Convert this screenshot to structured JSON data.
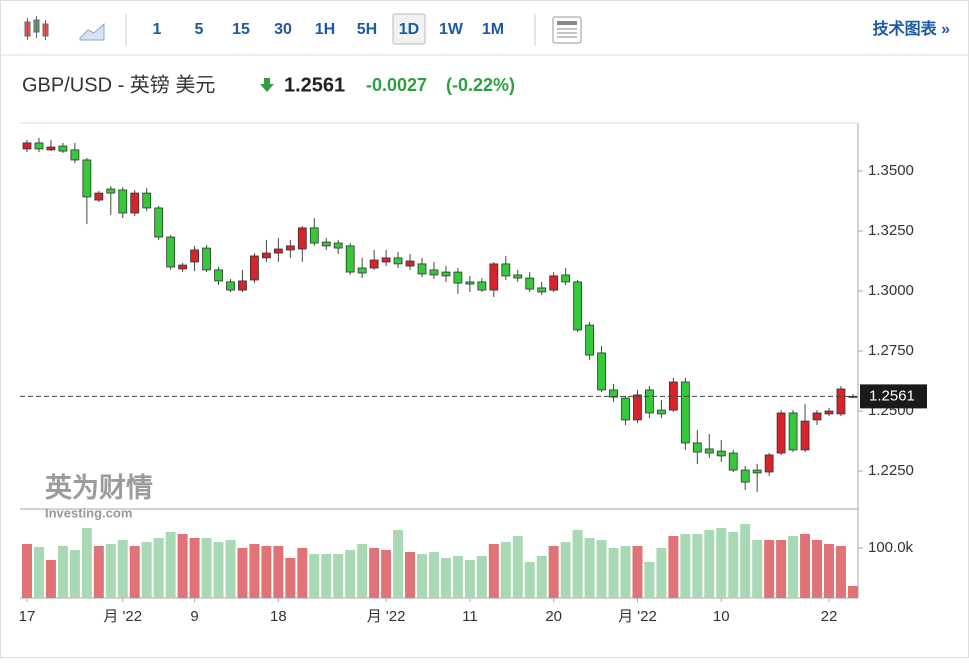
{
  "toolbar": {
    "intervals": [
      "1",
      "5",
      "15",
      "30",
      "1H",
      "5H",
      "1D",
      "1W",
      "1M"
    ],
    "active_index": 6,
    "link": "技术图表 »"
  },
  "quote": {
    "pair": "GBP/USD - 英镑 美元",
    "price": 1.2561,
    "change": -0.0027,
    "change_pct": "(-0.22%)"
  },
  "watermark": {
    "name": "英为财情",
    "site": "Investing.com"
  },
  "chart_data": {
    "type": "candlestick",
    "categories": [
      "17",
      null,
      null,
      null,
      null,
      null,
      null,
      null,
      "月 '22",
      null,
      null,
      null,
      null,
      null,
      "9",
      null,
      null,
      null,
      null,
      null,
      null,
      "18",
      null,
      null,
      null,
      null,
      null,
      null,
      null,
      null,
      "月 '22",
      null,
      null,
      null,
      null,
      null,
      null,
      "11",
      null,
      null,
      null,
      null,
      null,
      null,
      "20",
      null,
      null,
      null,
      null,
      null,
      null,
      "月 '22",
      null,
      null,
      null,
      null,
      null,
      null,
      "10",
      null,
      null,
      null,
      null,
      null,
      null,
      null,
      null,
      "22",
      null,
      null
    ],
    "candles": {
      "open": [
        1.3592,
        1.3617,
        1.3588,
        1.3604,
        1.3588,
        1.3546,
        1.3379,
        1.3425,
        1.3421,
        1.3325,
        1.3408,
        1.3346,
        1.3225,
        1.3092,
        1.3121,
        1.3179,
        1.3088,
        1.3038,
        1.3004,
        1.3046,
        1.3138,
        1.3158,
        1.3171,
        1.3175,
        1.3263,
        1.3204,
        1.32,
        1.3188,
        1.3096,
        1.3096,
        1.3121,
        1.3138,
        1.3104,
        1.3113,
        1.3088,
        1.3079,
        1.3079,
        1.3038,
        1.3038,
        1.3004,
        1.3113,
        1.3067,
        1.3054,
        1.3013,
        1.3004,
        1.3067,
        1.3038,
        1.2858,
        1.2742,
        1.2588,
        1.2554,
        1.2463,
        1.2588,
        1.2504,
        1.2504,
        1.2621,
        1.2367,
        1.2342,
        1.2333,
        1.2325,
        1.2254,
        1.2254,
        1.2246,
        1.2325,
        1.2492,
        1.2338,
        1.2463,
        1.2488,
        1.2488,
        1.2558
      ],
      "high": [
        1.3629,
        1.3638,
        1.3629,
        1.3617,
        1.3617,
        1.3554,
        1.3417,
        1.3438,
        1.3433,
        1.3421,
        1.3429,
        1.3354,
        1.3233,
        1.3117,
        1.3188,
        1.3192,
        1.31,
        1.305,
        1.3088,
        1.3158,
        1.3213,
        1.3221,
        1.3213,
        1.3271,
        1.3304,
        1.3221,
        1.3213,
        1.32,
        1.3138,
        1.3171,
        1.3171,
        1.3163,
        1.3154,
        1.3138,
        1.3121,
        1.3104,
        1.3096,
        1.3063,
        1.3054,
        1.3121,
        1.3146,
        1.3088,
        1.3079,
        1.3038,
        1.3079,
        1.3096,
        1.3046,
        1.2871,
        1.2771,
        1.2613,
        1.2563,
        1.2588,
        1.2604,
        1.2546,
        1.2638,
        1.2638,
        1.2421,
        1.2404,
        1.2379,
        1.2338,
        1.2271,
        1.2279,
        1.2325,
        1.2504,
        1.2504,
        1.2529,
        1.2504,
        1.2513,
        1.2604,
        1.2571
      ],
      "low": [
        1.3579,
        1.3579,
        1.3583,
        1.3575,
        1.3533,
        1.3279,
        1.3371,
        1.3317,
        1.3304,
        1.3312,
        1.3333,
        1.3213,
        1.3088,
        1.3079,
        1.3083,
        1.3079,
        1.3025,
        1.2996,
        1.2996,
        1.3033,
        1.3121,
        1.3121,
        1.3138,
        1.3121,
        1.3188,
        1.3171,
        1.3154,
        1.3067,
        1.3054,
        1.3088,
        1.3104,
        1.3096,
        1.3088,
        1.3058,
        1.305,
        1.3038,
        1.2988,
        1.2996,
        1.2996,
        1.2975,
        1.3046,
        1.3038,
        1.2996,
        1.2983,
        1.2996,
        1.3025,
        1.2829,
        1.2713,
        1.2579,
        1.2538,
        1.2442,
        1.245,
        1.2471,
        1.2471,
        1.2496,
        1.2338,
        1.2279,
        1.2304,
        1.2288,
        1.2246,
        1.2171,
        1.2163,
        1.2229,
        1.2317,
        1.2329,
        1.2329,
        1.2442,
        1.2479,
        1.2479,
        1.2554
      ],
      "close": [
        1.3617,
        1.3592,
        1.36,
        1.3583,
        1.3546,
        1.3392,
        1.3408,
        1.3408,
        1.3325,
        1.3408,
        1.3346,
        1.3225,
        1.31,
        1.3108,
        1.3171,
        1.3088,
        1.3042,
        1.3004,
        1.3042,
        1.3146,
        1.3158,
        1.3175,
        1.3188,
        1.3263,
        1.32,
        1.3188,
        1.3179,
        1.3079,
        1.3075,
        1.3129,
        1.3138,
        1.3113,
        1.3125,
        1.3071,
        1.3067,
        1.3063,
        1.3033,
        1.3029,
        1.3004,
        1.3113,
        1.3063,
        1.3054,
        1.3008,
        1.2996,
        1.3063,
        1.3038,
        1.2838,
        1.2733,
        1.2588,
        1.2558,
        1.2463,
        1.2567,
        1.2492,
        1.2488,
        1.2621,
        1.2367,
        1.2329,
        1.2325,
        1.2313,
        1.2254,
        1.2204,
        1.2242,
        1.2317,
        1.2492,
        1.2338,
        1.2458,
        1.2492,
        1.25,
        1.2592,
        1.2561
      ]
    },
    "volume": [
      108000,
      102000,
      76000,
      104000,
      96000,
      140000,
      104000,
      108000,
      116000,
      104000,
      112000,
      120000,
      132000,
      128000,
      120000,
      120000,
      112000,
      116000,
      100000,
      108000,
      104000,
      104000,
      80000,
      100000,
      88000,
      88000,
      88000,
      96000,
      108000,
      100000,
      96000,
      136000,
      92000,
      88000,
      92000,
      80000,
      84000,
      76000,
      84000,
      108000,
      112000,
      124000,
      72000,
      84000,
      104000,
      112000,
      136000,
      120000,
      116000,
      100000,
      104000,
      104000,
      72000,
      100000,
      124000,
      128000,
      128000,
      136000,
      140000,
      132000,
      148000,
      116000,
      116000,
      116000,
      124000,
      128000,
      116000,
      108000,
      104000,
      24000
    ],
    "up_color": "#d8232a",
    "down_color": "#35c93a",
    "volume_up_color": "#e07377",
    "volume_down_color": "#a8d8b4",
    "ylim": [
      1.2096,
      1.37
    ],
    "yticks": [
      {
        "value": 1.35,
        "label": "1.3500"
      },
      {
        "value": 1.325,
        "label": "1.3250"
      },
      {
        "value": 1.3,
        "label": "1.3000"
      },
      {
        "value": 1.275,
        "label": "1.2750"
      },
      {
        "value": 1.25,
        "label": "1.2500"
      },
      {
        "value": 1.225,
        "label": "1.2250"
      }
    ],
    "volume_ylim": [
      0,
      176000
    ],
    "volume_yticks": [
      {
        "value": 100000,
        "label": "100.0k"
      }
    ]
  }
}
